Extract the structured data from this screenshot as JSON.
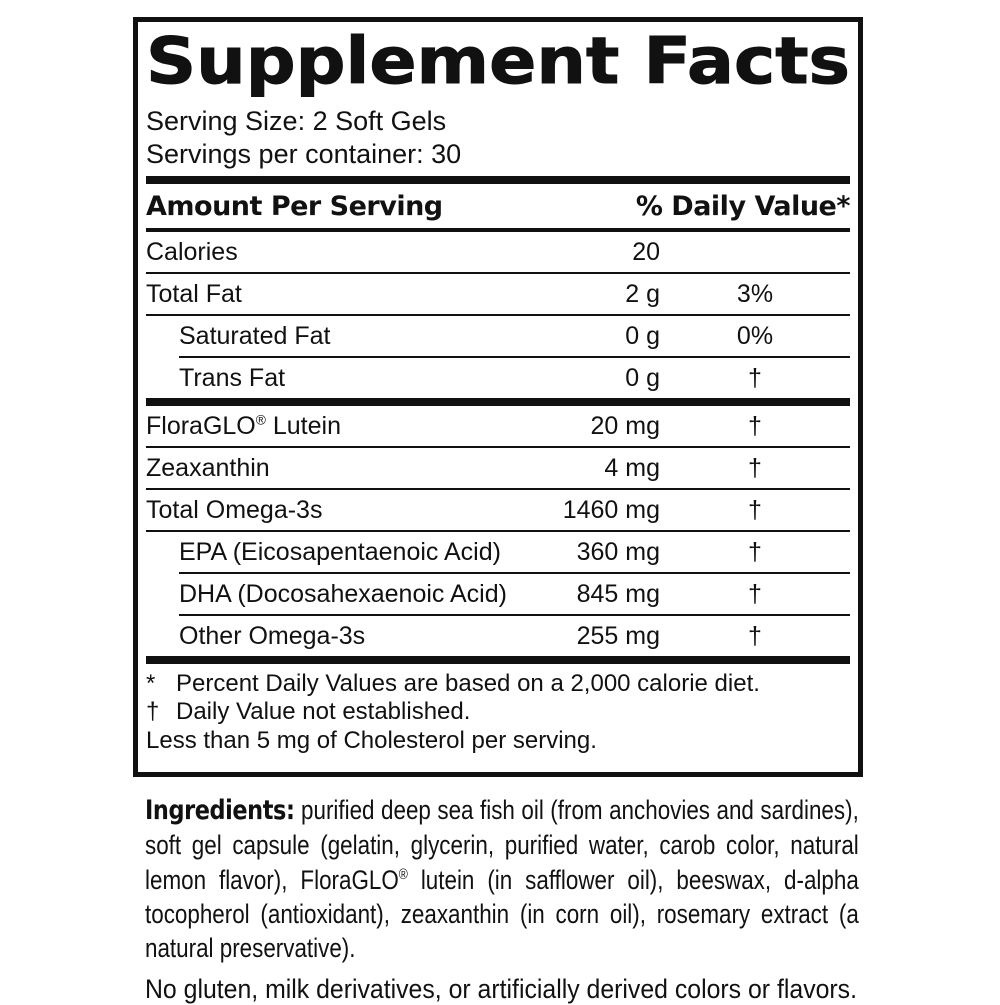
{
  "facts": {
    "title": "Supplement Facts",
    "serving_size": "Serving Size: 2 Soft Gels",
    "servings_per_container": "Servings per container: 30",
    "header": {
      "amount_label": "Amount Per Serving",
      "dv_label": "% Daily Value*"
    },
    "rows": [
      {
        "name": "Calories",
        "amount": "20",
        "dv": ""
      },
      {
        "name": "Total Fat",
        "amount": "2 g",
        "dv": "3%"
      },
      {
        "name": "Saturated Fat",
        "amount": "0 g",
        "dv": "0%"
      },
      {
        "name": "Trans Fat",
        "amount": "0 g",
        "dv": "†"
      },
      {
        "name": "FloraGLO® Lutein",
        "amount": "20 mg",
        "dv": "†"
      },
      {
        "name": "Zeaxanthin",
        "amount": "4 mg",
        "dv": "†"
      },
      {
        "name": "Total Omega-3s",
        "amount": "1460 mg",
        "dv": "†"
      },
      {
        "name": "EPA (Eicosapentaenoic Acid)",
        "amount": "360 mg",
        "dv": "†"
      },
      {
        "name": "DHA (Docosahexaenoic Acid)",
        "amount": "845 mg",
        "dv": "†"
      },
      {
        "name": "Other Omega-3s",
        "amount": "255 mg",
        "dv": "†"
      }
    ],
    "footnotes": [
      {
        "marker": "*",
        "text": "Percent Daily Values are based on a 2,000 calorie diet."
      },
      {
        "marker": "†",
        "text": "Daily Value not established."
      },
      {
        "marker": "",
        "text": "Less than 5 mg of Cholesterol per serving."
      }
    ]
  },
  "ingredients": {
    "label": "Ingredients:",
    "text": "purified deep sea fish oil (from anchovies and sardines), soft gel capsule (gelatin, glycerin, purified water, carob color, natural lemon flavor), FloraGLO® lutein (in safflower oil), beeswax, d-alpha tocopherol (antioxidant), zeaxanthin (in corn oil), rosemary extract (a natural preservative)."
  },
  "allergen_note": "No gluten, milk derivatives, or artificially derived colors or flavors.",
  "colors": {
    "text": "#111111",
    "background": "#ffffff",
    "rule": "#111111"
  }
}
